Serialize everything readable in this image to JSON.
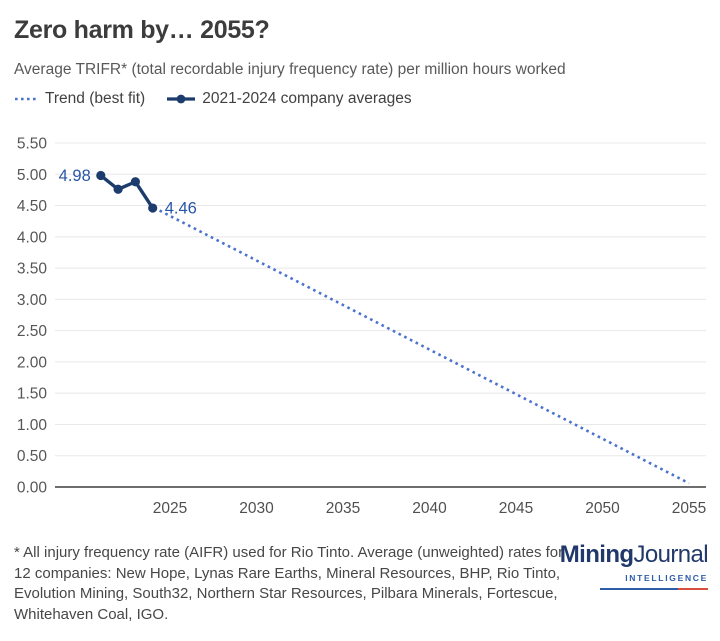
{
  "header": {
    "title": "Zero harm by… 2055?",
    "subtitle": "Average TRIFR* (total recordable injury frequency rate) per million hours worked"
  },
  "legend": [
    {
      "label": "Trend (best fit)",
      "style": "dotted"
    },
    {
      "label": "2021-2024 company averages",
      "style": "line-with-marker"
    }
  ],
  "colors": {
    "series": "#1d3c6e",
    "trend": "#4a72cf",
    "point_label": "#2856a6",
    "grid": "#e8e8e8",
    "axis": "#6e6e6e",
    "tick_text": "#565656",
    "logo_navy": "#21386b",
    "logo_blue": "#2d5ca8",
    "logo_red": "#d94f3d"
  },
  "chart_data": {
    "type": "line",
    "title": "Zero harm by… 2055?",
    "subtitle": "Average TRIFR* (total recordable injury frequency rate) per million hours worked",
    "x": [
      2021,
      2022,
      2023,
      2024
    ],
    "series": [
      {
        "name": "2021-2024 company averages",
        "values": [
          4.98,
          4.76,
          4.88,
          4.46
        ]
      }
    ],
    "trend": {
      "name": "Trend (best fit)",
      "start": {
        "x": 2024.4,
        "y": 4.42
      },
      "end": {
        "x": 2055,
        "y": 0.06
      }
    },
    "point_labels": [
      {
        "x": 2021,
        "text": "4.98"
      },
      {
        "x": 2024,
        "text": "4.46"
      }
    ],
    "x_ticks": [
      2025,
      2030,
      2035,
      2040,
      2045,
      2050,
      2055
    ],
    "y_ticks": [
      "5.50",
      "5.00",
      "4.50",
      "4.00",
      "3.50",
      "3.00",
      "2.50",
      "2.00",
      "1.50",
      "1.00",
      "0.50",
      "0.00"
    ],
    "xlim": [
      2020.3,
      2056
    ],
    "ylim": [
      0,
      5.5
    ],
    "grid": "horizontal",
    "legend_position": "top-left"
  },
  "footer": {
    "footnote": "* All injury frequency rate (AIFR) used for Rio Tinto. Average (unweighted) rates for 12 companies: New Hope, Lynas Rare Earths, Mineral Resources, BHP, Rio Tinto, Evolution Mining, South32, Northern Star Resources, Pilbara Minerals, Fortescue, Whitehaven Coal, IGO.",
    "logo": {
      "part1": "Mining",
      "part2": "Journal",
      "tagline": "INTELLIGENCE"
    }
  }
}
